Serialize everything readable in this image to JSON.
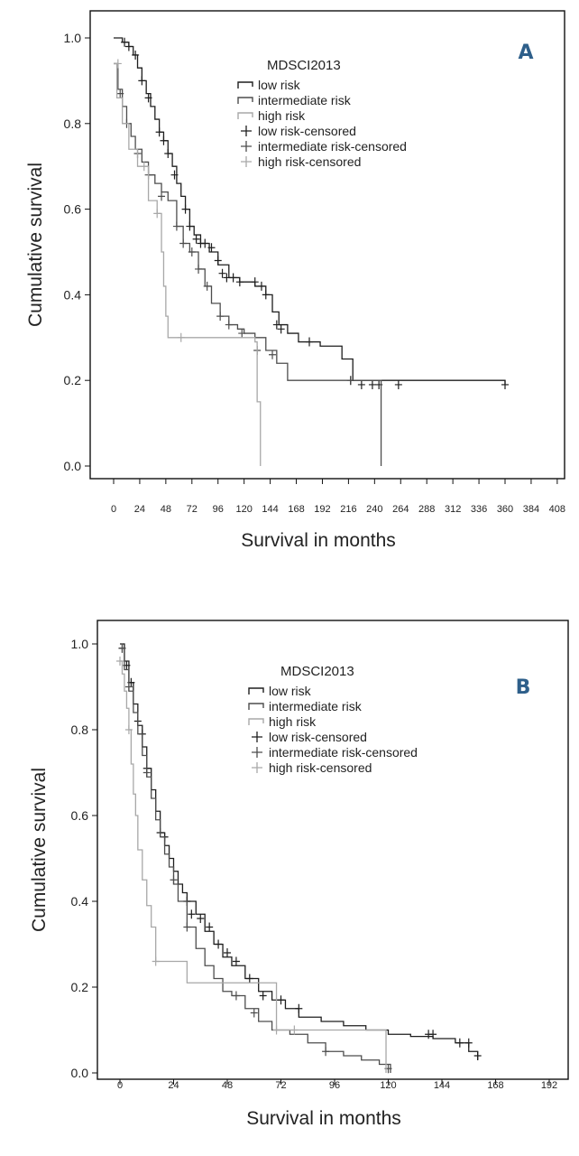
{
  "chart_data": [
    {
      "id": "A",
      "type": "line",
      "subtype": "kaplan-meier",
      "panel_label": "A",
      "xlabel": "Survival in months",
      "ylabel": "Cumulative survival",
      "xlim": [
        0,
        408
      ],
      "ylim": [
        0.0,
        1.0
      ],
      "xticks": [
        0,
        24,
        48,
        72,
        96,
        120,
        144,
        168,
        192,
        216,
        240,
        264,
        288,
        312,
        336,
        360,
        384,
        408
      ],
      "yticks": [
        0.0,
        0.2,
        0.4,
        0.6,
        0.8,
        1.0
      ],
      "ytick_labels": [
        "0.0",
        "0.2",
        "0.4",
        "0.6",
        "0.8",
        "1.0"
      ],
      "legend_title": "MDSCI2013",
      "legend": [
        "low risk",
        "intermediate risk",
        "high risk",
        "low risk-censored",
        "intermediate risk-censored",
        "high risk-censored"
      ],
      "series": [
        {
          "name": "low risk",
          "color": "#1e1e1e",
          "x": [
            0,
            8,
            14,
            18,
            22,
            26,
            30,
            34,
            38,
            42,
            46,
            50,
            54,
            58,
            62,
            66,
            70,
            74,
            80,
            88,
            96,
            106,
            116,
            130,
            140,
            146,
            152,
            160,
            170,
            190,
            210,
            220,
            360
          ],
          "y": [
            1.0,
            0.99,
            0.98,
            0.96,
            0.93,
            0.9,
            0.87,
            0.84,
            0.81,
            0.78,
            0.76,
            0.73,
            0.7,
            0.66,
            0.63,
            0.6,
            0.56,
            0.54,
            0.52,
            0.5,
            0.47,
            0.44,
            0.43,
            0.42,
            0.4,
            0.36,
            0.33,
            0.31,
            0.29,
            0.28,
            0.25,
            0.2,
            0.19
          ],
          "censored_x": [
            10,
            14,
            20,
            26,
            32,
            42,
            46,
            50,
            56,
            66,
            70,
            76,
            80,
            84,
            90,
            96,
            100,
            104,
            110,
            116,
            130,
            136,
            140,
            150,
            154,
            180,
            218,
            228,
            238,
            244,
            262,
            360
          ],
          "censored_y": [
            0.99,
            0.98,
            0.96,
            0.9,
            0.86,
            0.78,
            0.76,
            0.73,
            0.68,
            0.6,
            0.56,
            0.53,
            0.52,
            0.52,
            0.51,
            0.48,
            0.45,
            0.44,
            0.44,
            0.43,
            0.43,
            0.42,
            0.4,
            0.33,
            0.32,
            0.29,
            0.2,
            0.19,
            0.19,
            0.19,
            0.19,
            0.19
          ]
        },
        {
          "name": "intermediate risk",
          "color": "#4d4d4d",
          "x": [
            0,
            4,
            8,
            12,
            16,
            20,
            26,
            32,
            38,
            44,
            50,
            58,
            64,
            70,
            78,
            84,
            90,
            98,
            106,
            114,
            120,
            130,
            140,
            150,
            160,
            245,
            246
          ],
          "y": [
            0.94,
            0.88,
            0.84,
            0.8,
            0.77,
            0.74,
            0.71,
            0.68,
            0.66,
            0.64,
            0.62,
            0.56,
            0.52,
            0.5,
            0.46,
            0.42,
            0.38,
            0.35,
            0.33,
            0.32,
            0.31,
            0.3,
            0.27,
            0.24,
            0.2,
            0.2,
            0.0
          ],
          "censored_x": [
            6,
            12,
            22,
            32,
            44,
            58,
            64,
            72,
            78,
            86,
            98,
            106,
            118,
            132,
            146
          ],
          "censored_y": [
            0.87,
            0.8,
            0.73,
            0.68,
            0.63,
            0.56,
            0.52,
            0.5,
            0.46,
            0.42,
            0.35,
            0.33,
            0.31,
            0.27,
            0.26
          ]
        },
        {
          "name": "high risk",
          "color": "#a8a8a8",
          "x": [
            0,
            3,
            8,
            14,
            22,
            32,
            40,
            44,
            46,
            48,
            50,
            130,
            132,
            134,
            135
          ],
          "y": [
            0.94,
            0.86,
            0.8,
            0.74,
            0.7,
            0.62,
            0.59,
            0.5,
            0.42,
            0.35,
            0.3,
            0.29,
            0.15,
            0.15,
            0.0
          ],
          "censored_x": [
            4,
            28,
            40,
            62
          ],
          "censored_y": [
            0.94,
            0.7,
            0.59,
            0.3
          ]
        }
      ]
    },
    {
      "id": "B",
      "type": "line",
      "subtype": "kaplan-meier",
      "panel_label": "B",
      "xlabel": "Survival in months",
      "ylabel": "Cumulative survival",
      "xlim": [
        0,
        200
      ],
      "ylim": [
        0.0,
        1.0
      ],
      "xticks": [
        0,
        24,
        48,
        72,
        96,
        120,
        144,
        168,
        192
      ],
      "yticks": [
        0.0,
        0.2,
        0.4,
        0.6,
        0.8,
        1.0
      ],
      "ytick_labels": [
        "0.0",
        "0.2",
        "0.4",
        "0.6",
        "0.8",
        "1.0"
      ],
      "legend_title": "MDSCI2013",
      "legend": [
        "low risk",
        "intermediate risk",
        "high risk",
        "low risk-censored",
        "intermediate risk-censored",
        "high risk-censored"
      ],
      "series": [
        {
          "name": "low risk",
          "color": "#1e1e1e",
          "x": [
            0,
            2,
            4,
            6,
            8,
            10,
            12,
            14,
            16,
            18,
            20,
            22,
            24,
            26,
            28,
            30,
            34,
            38,
            42,
            46,
            50,
            56,
            62,
            68,
            74,
            80,
            90,
            100,
            110,
            120,
            130,
            140,
            150,
            156,
            160
          ],
          "y": [
            1.0,
            0.96,
            0.91,
            0.86,
            0.81,
            0.76,
            0.71,
            0.66,
            0.61,
            0.56,
            0.53,
            0.5,
            0.47,
            0.44,
            0.42,
            0.4,
            0.37,
            0.33,
            0.3,
            0.27,
            0.25,
            0.22,
            0.19,
            0.17,
            0.15,
            0.13,
            0.12,
            0.11,
            0.1,
            0.09,
            0.085,
            0.08,
            0.07,
            0.05,
            0.03
          ],
          "censored_x": [
            1,
            3,
            5,
            8,
            10,
            12,
            18,
            20,
            30,
            32,
            36,
            40,
            44,
            48,
            52,
            58,
            64,
            72,
            80,
            138,
            140,
            152,
            156,
            160
          ],
          "censored_y": [
            0.99,
            0.95,
            0.91,
            0.82,
            0.79,
            0.71,
            0.56,
            0.55,
            0.4,
            0.37,
            0.36,
            0.34,
            0.3,
            0.28,
            0.26,
            0.22,
            0.18,
            0.17,
            0.15,
            0.09,
            0.09,
            0.07,
            0.07,
            0.04
          ]
        },
        {
          "name": "intermediate risk",
          "color": "#4d4d4d",
          "x": [
            0,
            2,
            4,
            6,
            8,
            10,
            12,
            14,
            16,
            18,
            20,
            22,
            24,
            26,
            30,
            34,
            38,
            42,
            46,
            50,
            56,
            62,
            68,
            76,
            84,
            92,
            100,
            108,
            116,
            120,
            121
          ],
          "y": [
            0.99,
            0.94,
            0.89,
            0.84,
            0.79,
            0.74,
            0.69,
            0.64,
            0.59,
            0.55,
            0.51,
            0.48,
            0.44,
            0.4,
            0.34,
            0.29,
            0.25,
            0.22,
            0.19,
            0.18,
            0.15,
            0.12,
            0.1,
            0.09,
            0.07,
            0.05,
            0.04,
            0.03,
            0.02,
            0.02,
            0.0
          ],
          "censored_x": [
            1,
            4,
            12,
            24,
            30,
            52,
            60,
            92,
            120
          ],
          "censored_y": [
            0.99,
            0.9,
            0.7,
            0.45,
            0.34,
            0.18,
            0.14,
            0.05,
            0.01
          ]
        },
        {
          "name": "high risk",
          "color": "#a8a8a8",
          "x": [
            0,
            1,
            2,
            3,
            4,
            5,
            6,
            7,
            8,
            10,
            12,
            14,
            16,
            30,
            40,
            50,
            60,
            70,
            118,
            119
          ],
          "y": [
            0.96,
            0.93,
            0.89,
            0.85,
            0.8,
            0.72,
            0.65,
            0.6,
            0.52,
            0.45,
            0.39,
            0.34,
            0.26,
            0.21,
            0.21,
            0.21,
            0.21,
            0.1,
            0.1,
            0.0
          ],
          "censored_x": [
            0,
            4,
            16,
            70,
            78
          ],
          "censored_y": [
            0.96,
            0.8,
            0.26,
            0.1,
            0.1
          ]
        }
      ]
    }
  ]
}
